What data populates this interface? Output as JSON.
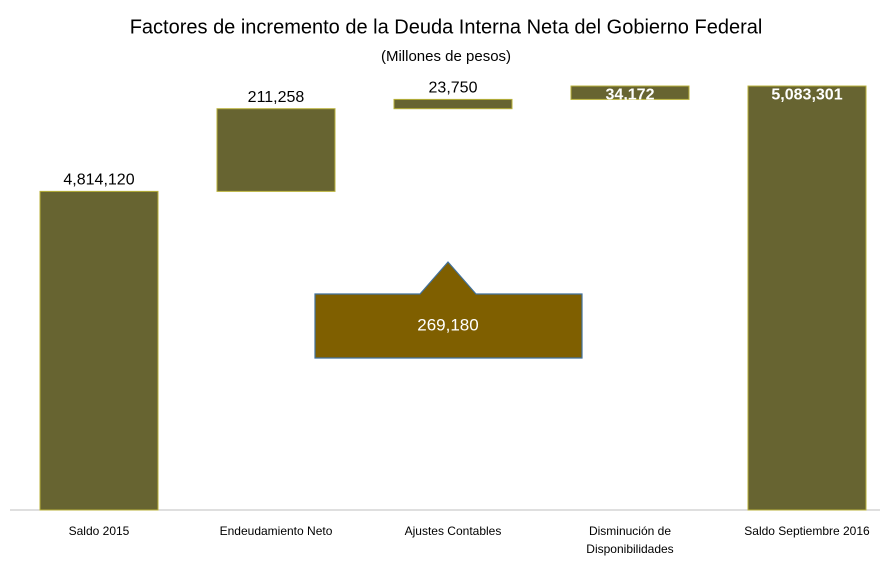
{
  "chart_data": {
    "type": "waterfall",
    "title": "Factores de incremento de la Deuda Interna Neta del Gobierno Federal",
    "subtitle": "(Millones de pesos)",
    "categories": [
      "Saldo 2015",
      "Endeudamiento Neto",
      "Ajustes Contables",
      "Disminución de Disponibilidades",
      "Saldo Septiembre  2016"
    ],
    "values": [
      4814120,
      211258,
      23750,
      34172,
      5083301
    ],
    "value_labels": [
      "4,814,120",
      "211,258",
      "23,750",
      "34,172",
      "5,083,301"
    ],
    "totals": [
      true,
      false,
      false,
      false,
      true
    ],
    "color": "#676431",
    "annotation": "269,180",
    "ylim": [
      4000000,
      5100000
    ]
  }
}
